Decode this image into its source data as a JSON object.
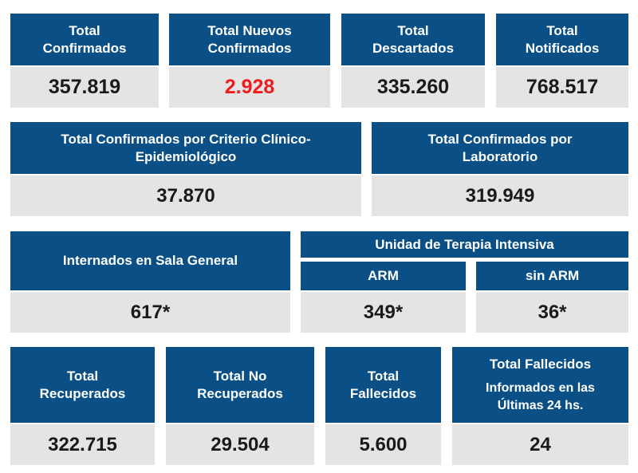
{
  "row1": [
    {
      "title_l1": "Total",
      "title_l2": "Confirmados",
      "value": "357.819"
    },
    {
      "title_l1": "Total Nuevos",
      "title_l2": "Confirmados",
      "value": "2.928"
    },
    {
      "title_l1": "Total",
      "title_l2": "Descartados",
      "value": "335.260"
    },
    {
      "title_l1": "Total",
      "title_l2": "Notificados",
      "value": "768.517"
    }
  ],
  "row2": [
    {
      "title_l1": "Total Confirmados por Criterio Clínico-",
      "title_l2": "Epidemiológico",
      "value": "37.870"
    },
    {
      "title_l1": "Total Confirmados por",
      "title_l2": "Laboratorio",
      "value": "319.949"
    }
  ],
  "row3": {
    "sala_general": {
      "title": "Internados en Sala General",
      "value": "617*"
    },
    "uti_title": "Unidad de Terapia Intensiva",
    "arm": {
      "title": "ARM",
      "value": "349*"
    },
    "sin_arm": {
      "title": "sin ARM",
      "value": "36*"
    }
  },
  "row4": [
    {
      "title_l1": "Total",
      "title_l2": "Recuperados",
      "value": "322.715"
    },
    {
      "title_l1": "Total No",
      "title_l2": "Recuperados",
      "value": "29.504"
    },
    {
      "title_l1": "Total",
      "title_l2": "Fallecidos",
      "value": "5.600"
    },
    {
      "title_l1": "Total Fallecidos",
      "title_l2": "Informados en las",
      "title_l3": "Últimas 24 hs.",
      "value": "24"
    }
  ],
  "colors": {
    "header": "#0a4f86",
    "value_bg": "#e4e4e4",
    "highlight": "#ee1c1c"
  }
}
